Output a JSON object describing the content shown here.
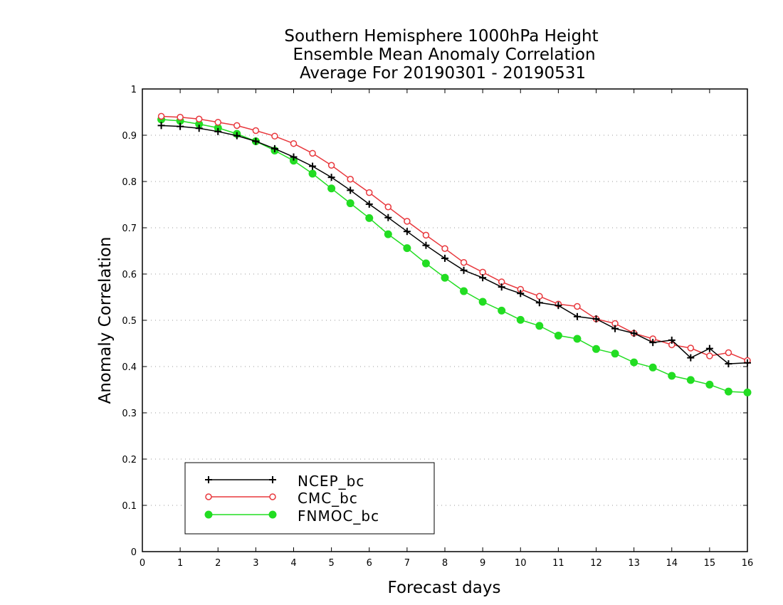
{
  "chart_data": {
    "type": "line",
    "title_lines": [
      "Southern Hemisphere 1000hPa Height",
      "Ensemble Mean Anomaly Correlation",
      "Average For 20190301 - 20190531"
    ],
    "xlabel": "Forecast days",
    "ylabel": "Anomaly Correlation",
    "xlim": [
      0,
      16
    ],
    "ylim": [
      0,
      1
    ],
    "xticks": [
      0,
      1,
      2,
      3,
      4,
      5,
      6,
      7,
      8,
      9,
      10,
      11,
      12,
      13,
      14,
      15,
      16
    ],
    "yticks": [
      0,
      0.1,
      0.2,
      0.3,
      0.4,
      0.5,
      0.6,
      0.7,
      0.8,
      0.9,
      1
    ],
    "grid": "horizontal dotted",
    "legend_position": "bottom-left",
    "x": [
      0.5,
      1,
      1.5,
      2,
      2.5,
      3,
      3.5,
      4,
      4.5,
      5,
      5.5,
      6,
      6.5,
      7,
      7.5,
      8,
      8.5,
      9,
      9.5,
      10,
      10.5,
      11,
      11.5,
      12,
      12.5,
      13,
      13.5,
      14,
      14.5,
      15,
      15.5,
      16
    ],
    "series": [
      {
        "name": "NCEP_bc",
        "color": "#000000",
        "marker": "plus",
        "values": [
          0.921,
          0.919,
          0.915,
          0.908,
          0.899,
          0.887,
          0.871,
          0.853,
          0.833,
          0.809,
          0.781,
          0.751,
          0.722,
          0.692,
          0.662,
          0.634,
          0.608,
          0.592,
          0.572,
          0.558,
          0.538,
          0.532,
          0.508,
          0.503,
          0.482,
          0.472,
          0.452,
          0.457,
          0.419,
          0.439,
          0.406,
          0.408
        ]
      },
      {
        "name": "CMC_bc",
        "color": "#e8383d",
        "marker": "open-circle",
        "values": [
          0.941,
          0.939,
          0.935,
          0.928,
          0.921,
          0.91,
          0.898,
          0.882,
          0.861,
          0.835,
          0.805,
          0.776,
          0.745,
          0.714,
          0.684,
          0.655,
          0.625,
          0.604,
          0.583,
          0.567,
          0.552,
          0.535,
          0.53,
          0.503,
          0.493,
          0.472,
          0.46,
          0.447,
          0.44,
          0.423,
          0.43,
          0.413
        ]
      },
      {
        "name": "FNMOC_bc",
        "color": "#22dd22",
        "marker": "filled-circle",
        "values": [
          0.934,
          0.931,
          0.924,
          0.916,
          0.903,
          0.887,
          0.867,
          0.845,
          0.817,
          0.785,
          0.753,
          0.721,
          0.686,
          0.656,
          0.623,
          0.592,
          0.563,
          0.54,
          0.521,
          0.501,
          0.488,
          0.467,
          0.46,
          0.438,
          0.428,
          0.409,
          0.398,
          0.38,
          0.371,
          0.361,
          0.346,
          0.344
        ]
      }
    ]
  }
}
